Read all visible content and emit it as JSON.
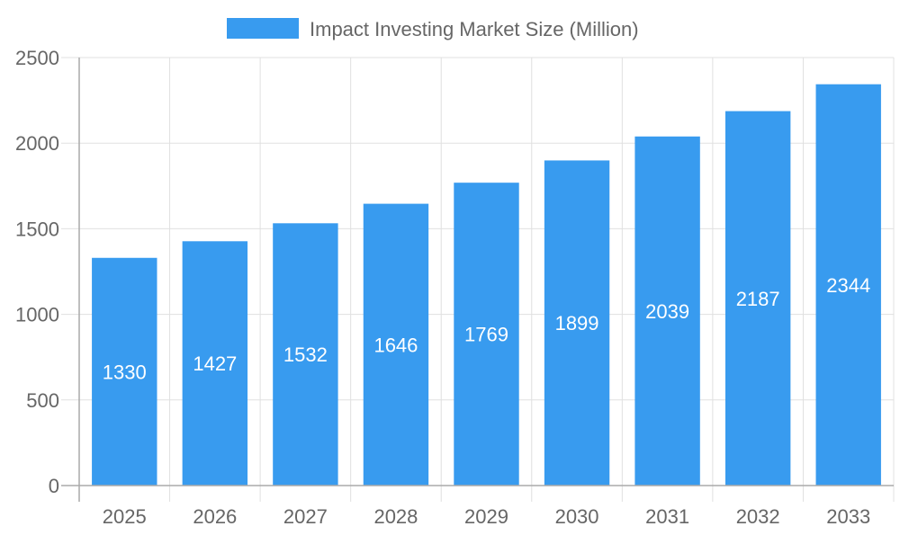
{
  "chart_data": {
    "type": "bar",
    "title": "",
    "xlabel": "",
    "ylabel": "",
    "categories": [
      "2025",
      "2026",
      "2027",
      "2028",
      "2029",
      "2030",
      "2031",
      "2032",
      "2033"
    ],
    "series": [
      {
        "name": "Impact Investing Market Size (Million)",
        "values": [
          1330,
          1427,
          1532,
          1646,
          1769,
          1899,
          2039,
          2187,
          2344
        ],
        "color": "#389bef"
      }
    ],
    "ylim": [
      0,
      2500
    ],
    "yticks": [
      0,
      500,
      1000,
      1500,
      2000,
      2500
    ],
    "grid": true,
    "legend": "top-center",
    "data_labels": true
  }
}
